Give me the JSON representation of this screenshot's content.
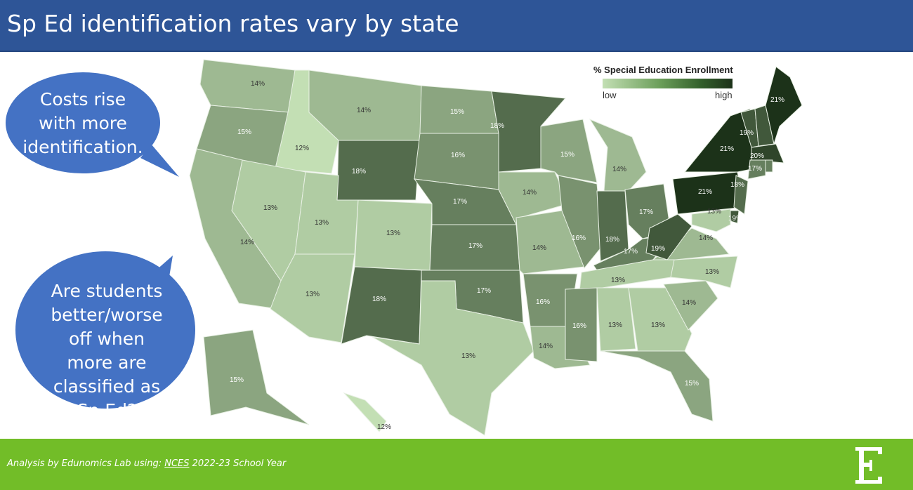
{
  "header": {
    "title": "Sp Ed identification rates vary by state"
  },
  "bubbles": [
    {
      "text": "Costs rise with more identification."
    },
    {
      "text": "Are students better/worse off when more are classified as Sp Ed?"
    }
  ],
  "legend": {
    "title": "% Special Education Enrollment",
    "low": "low",
    "high": "high"
  },
  "colors": {
    "header": "#2e5597",
    "footer": "#72bd28",
    "bubble": "#4472c4",
    "scale_low": "#c3dfb4",
    "scale_high": "#1c3219"
  },
  "scale": {
    "min": 12,
    "max": 21
  },
  "states": {
    "WA": {
      "value": 14,
      "label": "14%"
    },
    "OR": {
      "value": 15,
      "label": "15%"
    },
    "ID": {
      "value": 12,
      "label": "12%"
    },
    "MT": {
      "value": 14,
      "label": "14%"
    },
    "WY": {
      "value": 18,
      "label": "18%"
    },
    "NV": {
      "value": 13,
      "label": "13%"
    },
    "CA": {
      "value": 14,
      "label": "14%"
    },
    "UT": {
      "value": 13,
      "label": "13%"
    },
    "AZ": {
      "value": 13,
      "label": "13%"
    },
    "CO": {
      "value": 13,
      "label": "13%"
    },
    "NM": {
      "value": 18,
      "label": "18%"
    },
    "ND": {
      "value": 15,
      "label": "15%"
    },
    "SD": {
      "value": 16,
      "label": "16%"
    },
    "NE": {
      "value": 17,
      "label": "17%"
    },
    "KS": {
      "value": 17,
      "label": "17%"
    },
    "OK": {
      "value": 17,
      "label": "17%"
    },
    "TX": {
      "value": 13,
      "label": "13%"
    },
    "MN": {
      "value": 18,
      "label": "18%"
    },
    "IA": {
      "value": 14,
      "label": "14%"
    },
    "MO": {
      "value": 14,
      "label": "14%"
    },
    "AR": {
      "value": 16,
      "label": "16%"
    },
    "LA": {
      "value": 14,
      "label": "14%"
    },
    "WI": {
      "value": 15,
      "label": "15%"
    },
    "IL": {
      "value": 16,
      "label": "16%"
    },
    "MI": {
      "value": 14,
      "label": "14%"
    },
    "IN": {
      "value": 18,
      "label": "18%"
    },
    "OH": {
      "value": 17,
      "label": "17%"
    },
    "KY": {
      "value": 17,
      "label": "17%"
    },
    "TN": {
      "value": 13,
      "label": "13%"
    },
    "MS": {
      "value": 16,
      "label": "16%"
    },
    "AL": {
      "value": 13,
      "label": "13%"
    },
    "GA": {
      "value": 13,
      "label": "13%"
    },
    "FL": {
      "value": 15,
      "label": "15%"
    },
    "SC": {
      "value": 14,
      "label": "14%"
    },
    "NC": {
      "value": 13,
      "label": "13%"
    },
    "VA": {
      "value": 14,
      "label": "14%"
    },
    "WV": {
      "value": 19,
      "label": "19%"
    },
    "PA": {
      "value": 21,
      "label": "21%"
    },
    "NY": {
      "value": 21,
      "label": "21%"
    },
    "VT": {
      "value": 19,
      "label": "19%"
    },
    "NH": {
      "value": 19
    },
    "ME": {
      "value": 21,
      "label": "21%"
    },
    "MA": {
      "value": 20,
      "label": "20%"
    },
    "CT": {
      "value": 17,
      "label": "17%"
    },
    "RI": {
      "value": 17
    },
    "NJ": {
      "value": 18,
      "label": "18%"
    },
    "DE": {
      "value": 19,
      "label": "19%"
    },
    "MD": {
      "value": 13,
      "label": "13%"
    },
    "AK": {
      "value": 15,
      "label": "15%"
    },
    "HI": {
      "value": 12,
      "label": "12%"
    }
  },
  "footer": {
    "prefix": "Analysis by Edunomics Lab using: ",
    "link": "NCES",
    "suffix": " 2022-23 School Year",
    "logo": "E"
  }
}
